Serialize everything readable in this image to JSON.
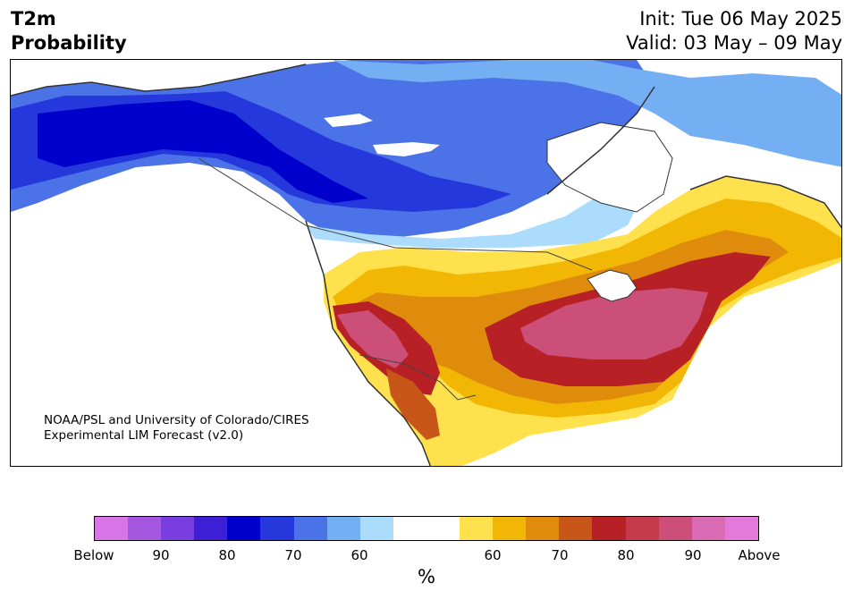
{
  "header": {
    "title_line1": "T2m",
    "title_line2": "Probability",
    "init": "Init: Tue 06 May 2025",
    "valid": "Valid: 03 May – 09 May"
  },
  "map": {
    "credit_line1": "NOAA/PSL and University of Colorado/CIRES",
    "credit_line2": "Experimental LIM Forecast (v2.0)"
  },
  "colorbar": {
    "colors": [
      "#d775e8",
      "#a557e0",
      "#7a3de0",
      "#3d1fd6",
      "#0000cc",
      "#2538db",
      "#4b72e6",
      "#74aef3",
      "#acdcfb",
      "#ffffff",
      "#ffffff",
      "#ffe14d",
      "#f2b705",
      "#df8c0c",
      "#c75618",
      "#b72025",
      "#c53a4b",
      "#cc4f7a",
      "#da6cb5",
      "#e479dc"
    ],
    "tick_labels": [
      "Below",
      "90",
      "80",
      "70",
      "60",
      "60",
      "70",
      "80",
      "90",
      "Above"
    ],
    "unit": "%"
  }
}
